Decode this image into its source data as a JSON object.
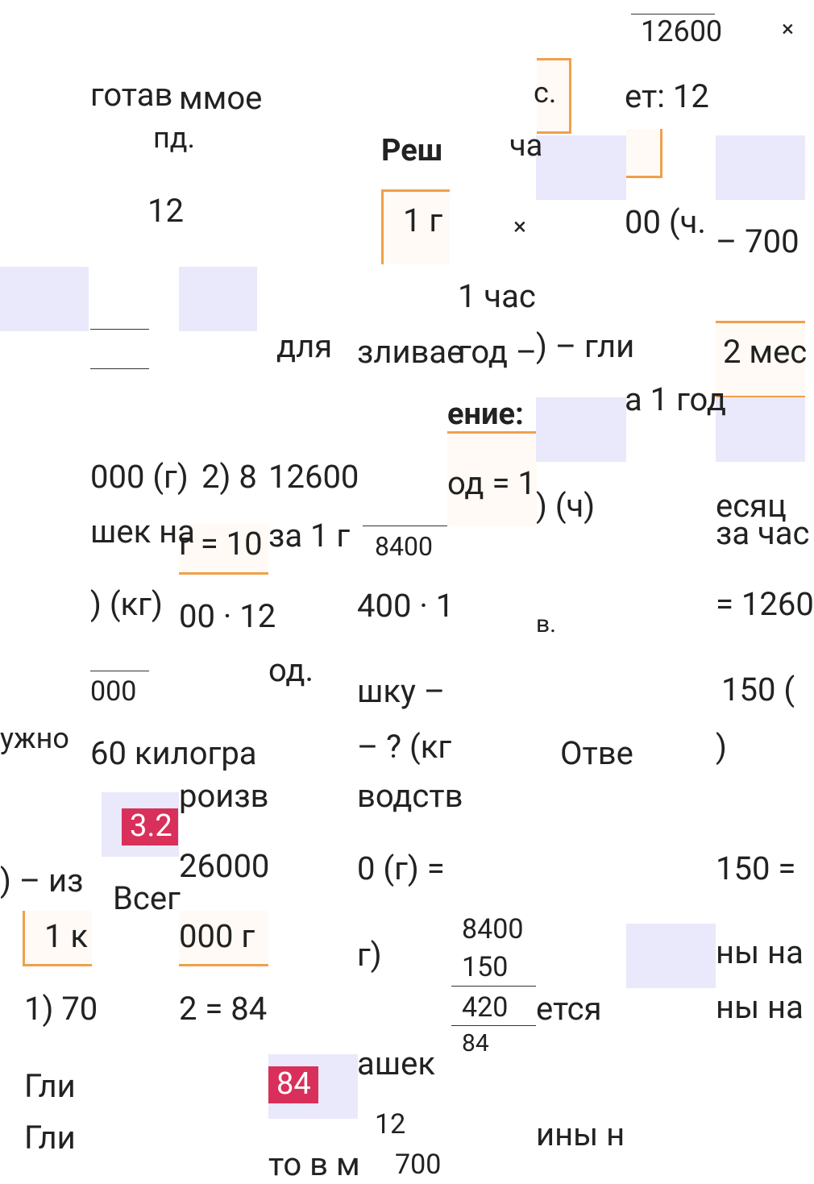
{
  "fragments": [
    "12600",
    "×",
    "готав",
    "ммое",
    "с.",
    "ет: 12",
    "пд.",
    "Реш",
    "ча",
    "12",
    "1 г",
    "×",
    "00 (ч.",
    "– 700",
    "1 час",
    "для",
    "зливае",
    "год –",
    ") – гли",
    "2 мес",
    "ение:",
    "а 1 год",
    "000 (г)",
    "2) 8",
    "12600",
    "од = 1",
    ") (ч)",
    "есяц",
    "шек на",
    "г = 10",
    "за 1 г",
    "8400",
    "за час",
    ") (кг)",
    "00 · 12",
    "400 · 1",
    "= 1260",
    "в.",
    "од.",
    "шку –",
    "000",
    "150 (",
    "ужно",
    "60 килогра",
    "– ? (кг",
    "Отве",
    ")",
    "роизв",
    "водств",
    ") – из",
    "Всег",
    "26000",
    "0 (г) =",
    "150 =",
    "8400",
    "150",
    "420",
    "84",
    "1 к",
    "000 г",
    "г)",
    "ны на",
    "1) 70",
    "2 = 84",
    "ется",
    "ны на",
    "ашек",
    "Гли",
    "12",
    "Гли",
    "ины н",
    "то в м",
    "700"
  ],
  "badges": [
    "3.2",
    "84"
  ]
}
